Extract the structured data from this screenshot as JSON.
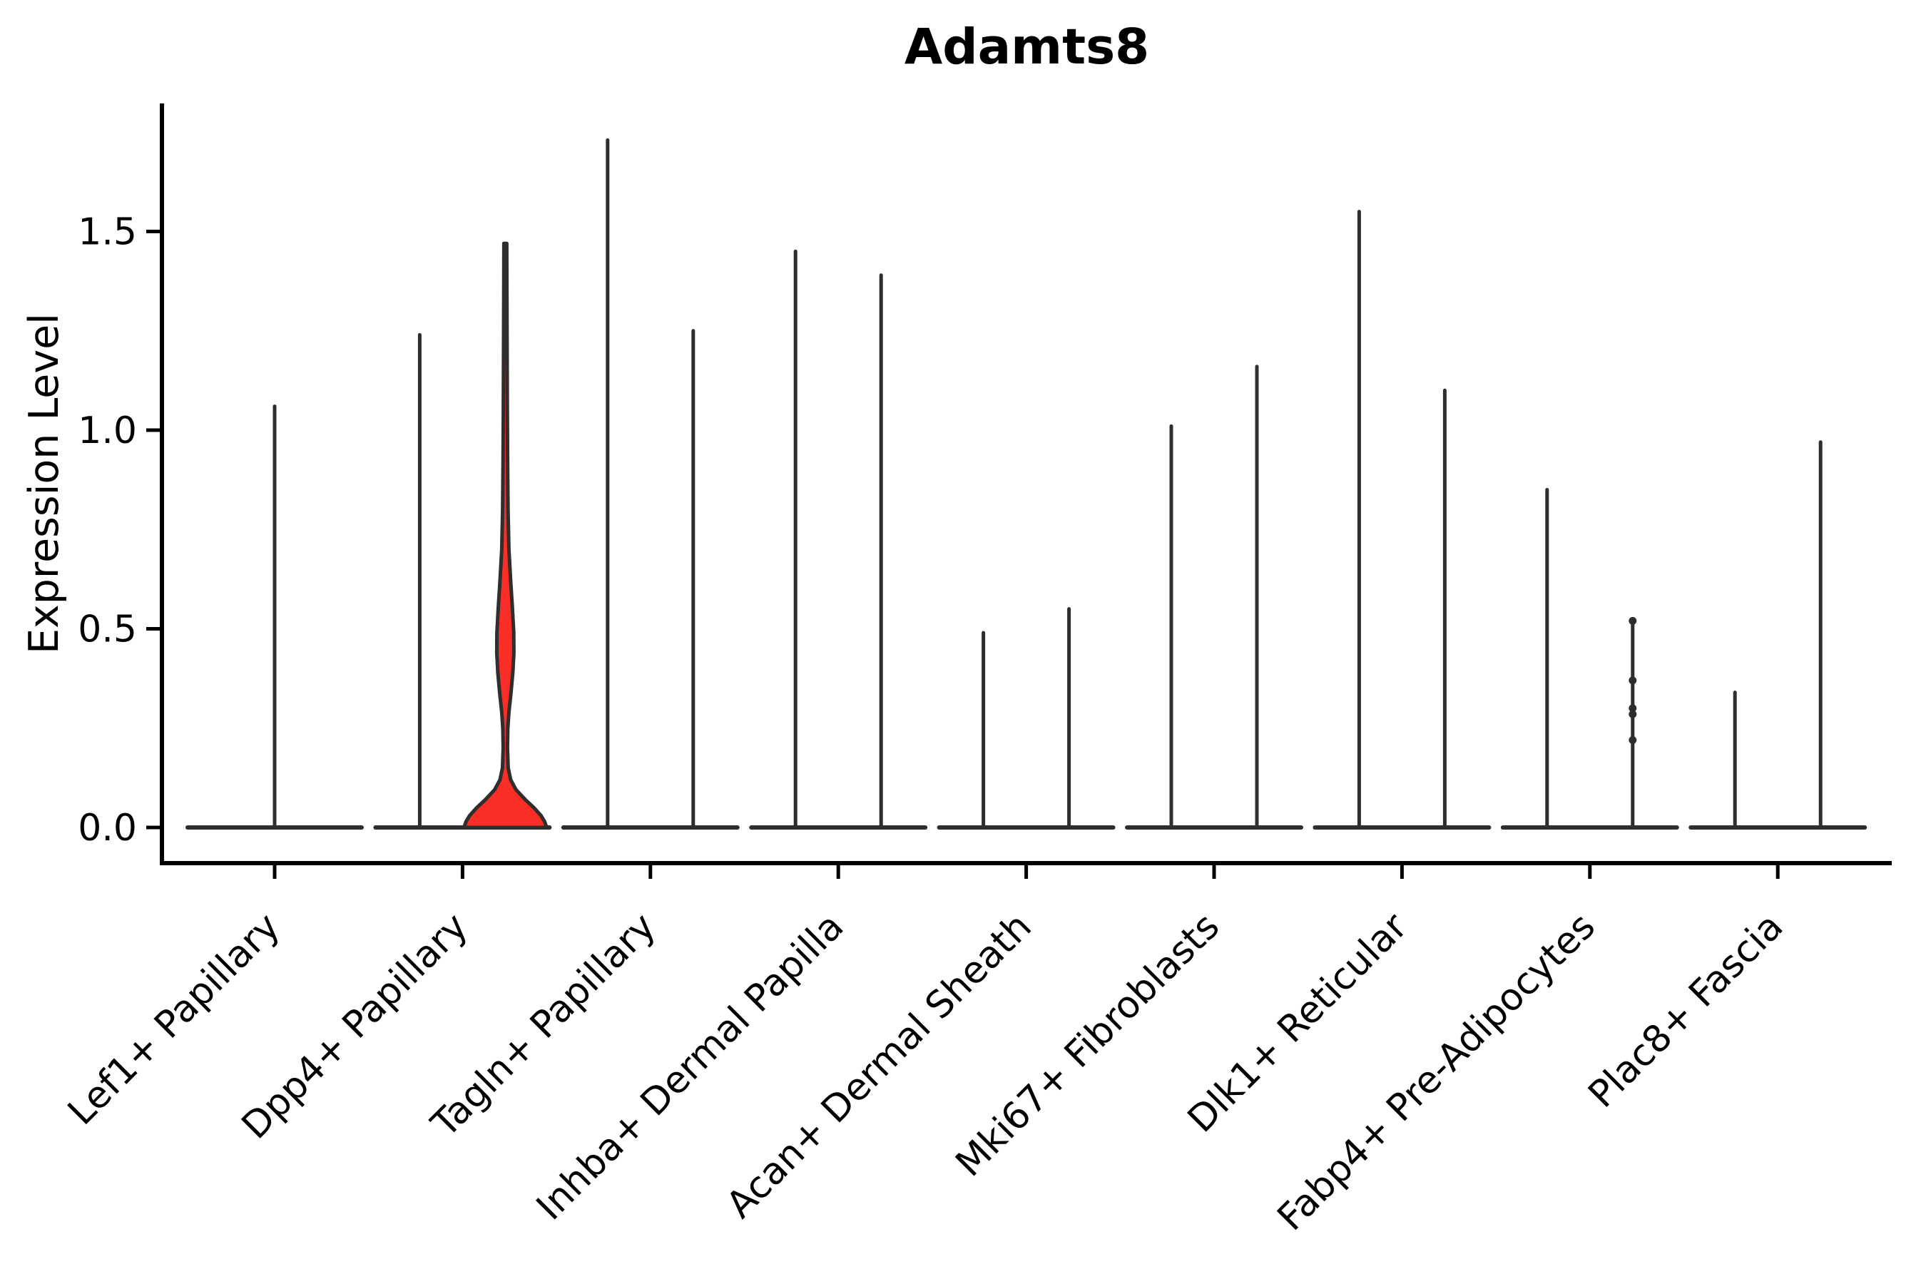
{
  "chart_data": {
    "type": "violin",
    "title": "Adamts8",
    "ylabel": "Expression Level",
    "xlabel": "",
    "ylim": [
      0,
      1.83
    ],
    "grid": false,
    "legend": "none",
    "yticks": {
      "values": [
        0.0,
        0.5,
        1.0,
        1.5
      ],
      "labels": [
        "0.0",
        "0.5",
        "1.0",
        "1.5"
      ]
    },
    "colors": {
      "highlight_fill": "#FA2E26",
      "line": "#2E2E2E",
      "axis": "#000000"
    },
    "categories": [
      "Lef1+ Papillary",
      "Dpp4+ Papillary",
      "Tagln+ Papillary",
      "Inhba+ Dermal Papilla",
      "Acan+ Dermal Sheath",
      "Mki67+ Fibroblasts",
      "Dlk1+ Reticular",
      "Fabp4+ Pre-Adipocytes",
      "Plac8+ Fascia"
    ],
    "groups": [
      {
        "category": "Lef1+ Papillary",
        "violins": [
          {
            "position": "center",
            "shape": "spike",
            "max": 1.06
          }
        ]
      },
      {
        "category": "Dpp4+ Papillary",
        "violins": [
          {
            "position": "left",
            "shape": "spike",
            "max": 1.24
          },
          {
            "position": "right",
            "shape": "violin",
            "max": 1.47,
            "fill": "#FA2E26",
            "profile": [
              [
                1.47,
                2.0
              ],
              [
                1.35,
                2.2
              ],
              [
                1.2,
                2.5
              ],
              [
                1.05,
                2.8
              ],
              [
                0.92,
                3.2
              ],
              [
                0.8,
                3.8
              ],
              [
                0.7,
                5.0
              ],
              [
                0.62,
                7.5
              ],
              [
                0.55,
                10.0
              ],
              [
                0.49,
                11.8
              ],
              [
                0.44,
                12.0
              ],
              [
                0.39,
                10.5
              ],
              [
                0.34,
                8.0
              ],
              [
                0.29,
                5.0
              ],
              [
                0.25,
                3.5
              ],
              [
                0.2,
                3.0
              ],
              [
                0.15,
                4.0
              ],
              [
                0.12,
                7.5
              ],
              [
                0.095,
                15.0
              ],
              [
                0.07,
                28.0
              ],
              [
                0.05,
                40.0
              ],
              [
                0.03,
                50.0
              ],
              [
                0.015,
                55.0
              ],
              [
                0.0,
                58.0
              ]
            ]
          }
        ]
      },
      {
        "category": "Tagln+ Papillary",
        "violins": [
          {
            "position": "left",
            "shape": "spike",
            "max": 1.73
          },
          {
            "position": "right",
            "shape": "spike",
            "max": 1.25
          }
        ]
      },
      {
        "category": "Inhba+ Dermal Papilla",
        "violins": [
          {
            "position": "left",
            "shape": "spike",
            "max": 1.45
          },
          {
            "position": "right",
            "shape": "spike",
            "max": 1.39
          }
        ]
      },
      {
        "category": "Acan+ Dermal Sheath",
        "violins": [
          {
            "position": "left",
            "shape": "spike",
            "max": 0.49
          },
          {
            "position": "right",
            "shape": "spike",
            "max": 0.55
          }
        ]
      },
      {
        "category": "Mki67+ Fibroblasts",
        "violins": [
          {
            "position": "left",
            "shape": "spike",
            "max": 1.01
          },
          {
            "position": "right",
            "shape": "spike",
            "max": 1.16
          }
        ]
      },
      {
        "category": "Dlk1+ Reticular",
        "violins": [
          {
            "position": "left",
            "shape": "spike",
            "max": 1.55
          },
          {
            "position": "right",
            "shape": "spike",
            "max": 1.1
          }
        ]
      },
      {
        "category": "Fabp4+ Pre-Adipocytes",
        "violins": [
          {
            "position": "left",
            "shape": "spike",
            "max": 0.85
          },
          {
            "position": "right",
            "shape": "spike",
            "max": 0.52,
            "points": [
              0.52,
              0.37,
              0.3,
              0.285,
              0.22
            ]
          }
        ]
      },
      {
        "category": "Plac8+ Fascia",
        "violins": [
          {
            "position": "left",
            "shape": "spike",
            "max": 0.34
          },
          {
            "position": "right",
            "shape": "spike",
            "max": 0.97
          }
        ]
      }
    ]
  }
}
